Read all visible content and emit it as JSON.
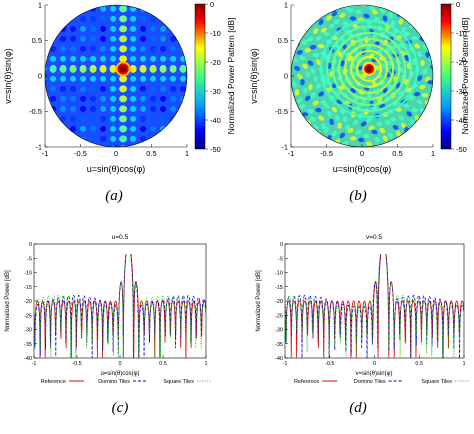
{
  "chart_data": [
    {
      "panel": "a",
      "caption": "(a)",
      "type": "heatmap",
      "title": "",
      "xlabel": "u=sin(θ)cos(φ)",
      "ylabel": "v=sin(θ)sin(φ)",
      "xlim": [
        -1,
        1
      ],
      "ylim": [
        -1,
        1
      ],
      "x_ticks": [
        "-1",
        "-0.5",
        "0",
        "0.5",
        "1"
      ],
      "y_ticks": [
        "1",
        "0.5",
        "0",
        "-0.5",
        "-1"
      ],
      "peak": {
        "u": 0.1,
        "v": 0.1,
        "value_db": 0
      },
      "colorbar": {
        "label": "Normalized Power Pattern [dB]",
        "ticks": [
          "0",
          "-10",
          "-20",
          "-30",
          "-40",
          "-50"
        ],
        "range": [
          -50,
          0
        ]
      }
    },
    {
      "panel": "b",
      "caption": "(b)",
      "type": "heatmap",
      "title": "",
      "xlabel": "u=sin(θ)cos(φ)",
      "ylabel": "v=sin(θ)sin(φ)",
      "xlim": [
        -1,
        1
      ],
      "ylim": [
        -1,
        1
      ],
      "x_ticks": [
        "-1",
        "-0.5",
        "0",
        "0.5",
        "1"
      ],
      "y_ticks": [
        "1",
        "0.5",
        "0",
        "-0.5",
        "-1"
      ],
      "peak": {
        "u": 0.1,
        "v": 0.1,
        "value_db": 0
      },
      "colorbar": {
        "label": "Normalized Power Pattern [dB]",
        "ticks": [
          "0",
          "-10",
          "-20",
          "-30",
          "-40",
          "-50"
        ],
        "range": [
          -50,
          0
        ]
      }
    },
    {
      "panel": "c",
      "caption": "(c)",
      "type": "line",
      "title": "u=0.5",
      "xlabel": "u=sin(θ)cos(φ)",
      "ylabel": "Normalized Power [dB]",
      "xlim": [
        -1,
        1
      ],
      "ylim": [
        -40,
        0
      ],
      "x_ticks": [
        "-1",
        "-0.5",
        "0",
        "0.5",
        "1"
      ],
      "y_ticks": [
        "0",
        "-5",
        "-10",
        "-15",
        "-20",
        "-25",
        "-30",
        "-35",
        "-40"
      ],
      "main_lobe": {
        "center": 0.1,
        "peak_db": 0
      },
      "sidelobe_level_db": -20,
      "legend_position": "bottom",
      "series": [
        {
          "name": "Reference",
          "color": "#e00000",
          "style": "solid"
        },
        {
          "name": "Domino Tiles",
          "color": "#0000e0",
          "style": "dashed"
        },
        {
          "name": "Square Tiles",
          "color": "#22c000",
          "style": "dotted"
        }
      ]
    },
    {
      "panel": "d",
      "caption": "(d)",
      "type": "line",
      "title": "v=0.5",
      "xlabel": "v=sin(θ)sin(φ)",
      "ylabel": "Normalized Power [dB]",
      "xlim": [
        -1,
        1
      ],
      "ylim": [
        -40,
        0
      ],
      "x_ticks": [
        "-1",
        "-0.5",
        "0",
        "0.5",
        "1"
      ],
      "y_ticks": [
        "0",
        "-5",
        "-10",
        "-15",
        "-20",
        "-25",
        "-30",
        "-35",
        "-40"
      ],
      "main_lobe": {
        "center": 0.1,
        "peak_db": 0
      },
      "sidelobe_level_db": -20,
      "legend_position": "bottom",
      "series": [
        {
          "name": "Reference",
          "color": "#e00000",
          "style": "solid"
        },
        {
          "name": "Domino Tiles",
          "color": "#0000e0",
          "style": "dashed"
        },
        {
          "name": "Square Tiles",
          "color": "#22c000",
          "style": "dotted"
        }
      ]
    }
  ]
}
